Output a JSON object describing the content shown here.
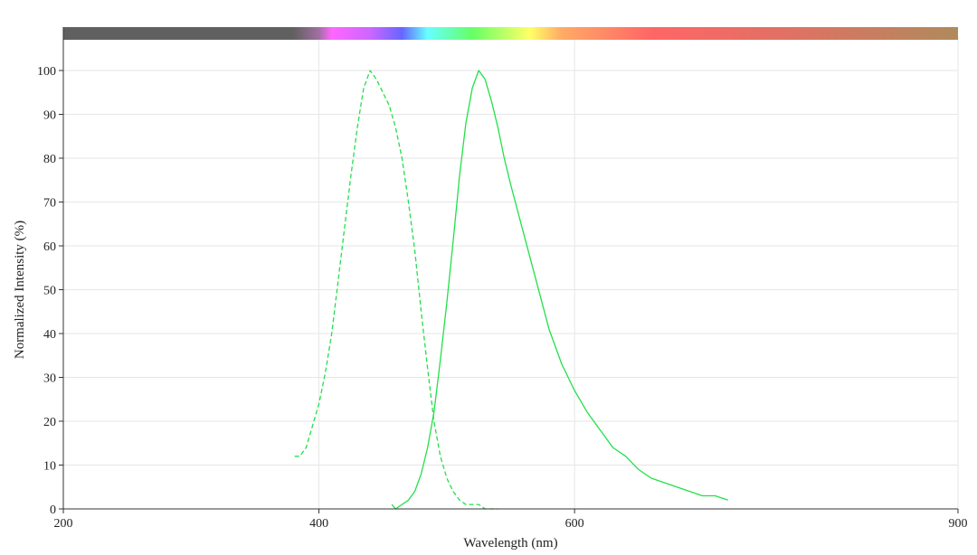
{
  "chart_data": {
    "type": "line",
    "xlabel": "Wavelength (nm)",
    "ylabel": "Normalized Intensity (%)",
    "xlim": [
      200,
      900
    ],
    "ylim": [
      0,
      100
    ],
    "x_ticks": [
      200,
      400,
      600,
      900
    ],
    "y_ticks": [
      0,
      10,
      20,
      30,
      40,
      50,
      60,
      70,
      80,
      90,
      100
    ],
    "grid": true,
    "spectrum_bar": {
      "stops": [
        {
          "nm": 200,
          "color": "#606060"
        },
        {
          "nm": 380,
          "color": "#606060"
        },
        {
          "nm": 400,
          "color": "#a070a0"
        },
        {
          "nm": 410,
          "color": "#ff66ff"
        },
        {
          "nm": 440,
          "color": "#cc66ff"
        },
        {
          "nm": 465,
          "color": "#6666ff"
        },
        {
          "nm": 485,
          "color": "#66ffff"
        },
        {
          "nm": 520,
          "color": "#66ff66"
        },
        {
          "nm": 565,
          "color": "#ffff66"
        },
        {
          "nm": 590,
          "color": "#ffaa66"
        },
        {
          "nm": 660,
          "color": "#ff6666"
        },
        {
          "nm": 760,
          "color": "#e27064"
        },
        {
          "nm": 900,
          "color": "#b08a5c"
        }
      ]
    },
    "series": [
      {
        "style": "dashed",
        "color": "#22e04a",
        "x": [
          381,
          385,
          390,
          395,
          400,
          405,
          410,
          415,
          420,
          425,
          430,
          435,
          440,
          445,
          450,
          455,
          460,
          465,
          470,
          475,
          480,
          485,
          490,
          495,
          500,
          505,
          510,
          515,
          520,
          525,
          530,
          535,
          540
        ],
        "y": [
          12,
          12,
          14,
          19,
          24,
          31,
          40,
          52,
          64,
          76,
          87,
          96,
          100,
          98,
          95,
          92,
          87,
          80,
          70,
          59,
          45,
          32,
          20,
          12,
          7,
          4,
          2,
          1,
          1,
          1,
          0,
          0,
          0
        ]
      },
      {
        "style": "solid",
        "color": "#22e04a",
        "x": [
          457,
          460,
          465,
          470,
          475,
          480,
          485,
          490,
          495,
          500,
          505,
          510,
          515,
          520,
          525,
          530,
          535,
          540,
          545,
          550,
          560,
          570,
          580,
          590,
          600,
          610,
          620,
          630,
          640,
          650,
          660,
          670,
          680,
          690,
          700,
          710,
          720
        ],
        "y": [
          1,
          0,
          1,
          2,
          4,
          8,
          14,
          22,
          34,
          47,
          61,
          76,
          88,
          96,
          100,
          98,
          93,
          87,
          80,
          74,
          63,
          52,
          41,
          33,
          27,
          22,
          18,
          14,
          12,
          9,
          7,
          6,
          5,
          4,
          3,
          3,
          2
        ]
      }
    ]
  }
}
